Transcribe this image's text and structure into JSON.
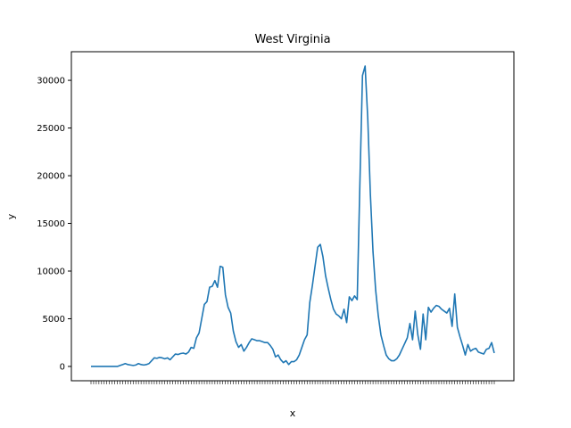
{
  "chart_data": {
    "type": "line",
    "title": "West Virginia",
    "xlabel": "x",
    "ylabel": "y",
    "ylim": [
      -1500,
      33000
    ],
    "yticks": [
      0,
      5000,
      10000,
      15000,
      20000,
      25000,
      30000
    ],
    "grid": false,
    "legend": "none",
    "series": [
      {
        "color": "#1f77b4",
        "values": [
          0,
          0,
          0,
          0,
          0,
          0,
          0,
          0,
          0,
          0,
          0,
          100,
          200,
          300,
          200,
          150,
          100,
          150,
          300,
          200,
          150,
          200,
          300,
          600,
          900,
          850,
          950,
          900,
          800,
          900,
          700,
          1000,
          1300,
          1250,
          1350,
          1400,
          1300,
          1500,
          2000,
          1900,
          3000,
          3500,
          5000,
          6500,
          6800,
          8300,
          8400,
          9000,
          8300,
          10500,
          10400,
          7500,
          6200,
          5600,
          3700,
          2600,
          2000,
          2300,
          1600,
          2000,
          2500,
          2900,
          2800,
          2700,
          2700,
          2600,
          2500,
          2500,
          2200,
          1800,
          1000,
          1200,
          700,
          400,
          600,
          200,
          500,
          500,
          700,
          1200,
          2000,
          2800,
          3300,
          6700,
          8500,
          10500,
          12500,
          12800,
          11500,
          9500,
          8200,
          7000,
          6000,
          5500,
          5300,
          5000,
          6000,
          4600,
          7300,
          6900,
          7400,
          7000,
          19000,
          30500,
          31500,
          26000,
          18000,
          12000,
          8000,
          5300,
          3300,
          2200,
          1200,
          800,
          600,
          600,
          800,
          1200,
          1800,
          2400,
          3000,
          4500,
          2800,
          5800,
          3300,
          1800,
          5500,
          2800,
          6200,
          5700,
          6100,
          6400,
          6300,
          6000,
          5800,
          5600,
          6100,
          4200,
          7600,
          4100,
          3100,
          2200,
          1200,
          2300,
          1600,
          1800,
          1900,
          1500,
          1400,
          1300,
          1800,
          1900,
          2500,
          1400
        ]
      }
    ]
  }
}
